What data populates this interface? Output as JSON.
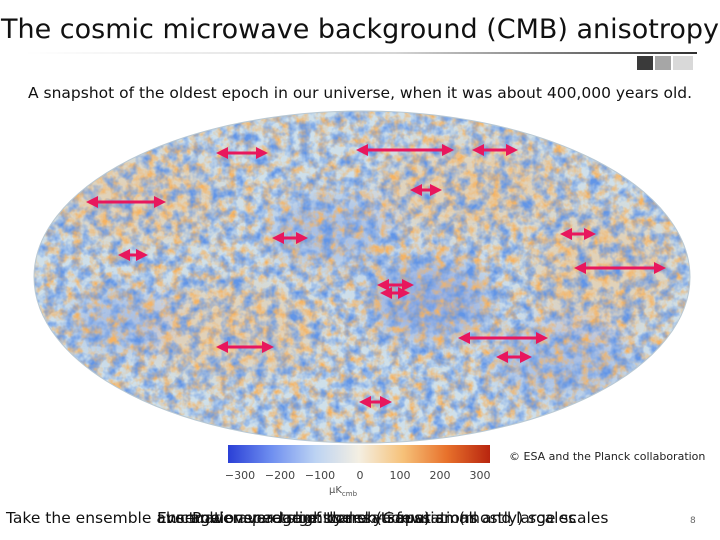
{
  "slide": {
    "title": "The cosmic microwave background (CMB) anisotropy",
    "subtitle": "A snapshot of the oldest epoch in our universe, when it was about 400,000 years old.",
    "credit": "© ESA and the Planck collaboration",
    "page_number": "8",
    "colorbar": {
      "ticks": [
        "−300",
        "−200",
        "−100",
        "0",
        "100",
        "200",
        "300"
      ],
      "unit": "μK",
      "unit_subscript": "cmb",
      "colors": [
        "#2a3fd6",
        "#6f8ff0",
        "#bcd3f3",
        "#f4efe2",
        "#f6c27a",
        "#e8722c",
        "#b8250f"
      ]
    },
    "bottom_overlap": [
      "Take the ensemble average over a large scales (a few)",
      "Ensemble average of the sky separations",
      "Fluctuations are slightly non-Gaussian (mostly) scales",
      "Power spectrum: correlation at small and large scales"
    ],
    "arrow_color": "#e8175d",
    "map_colors": {
      "cold": "#2f56c8",
      "warm": "#e58a3a",
      "neutral": "#cfe0ea"
    }
  }
}
